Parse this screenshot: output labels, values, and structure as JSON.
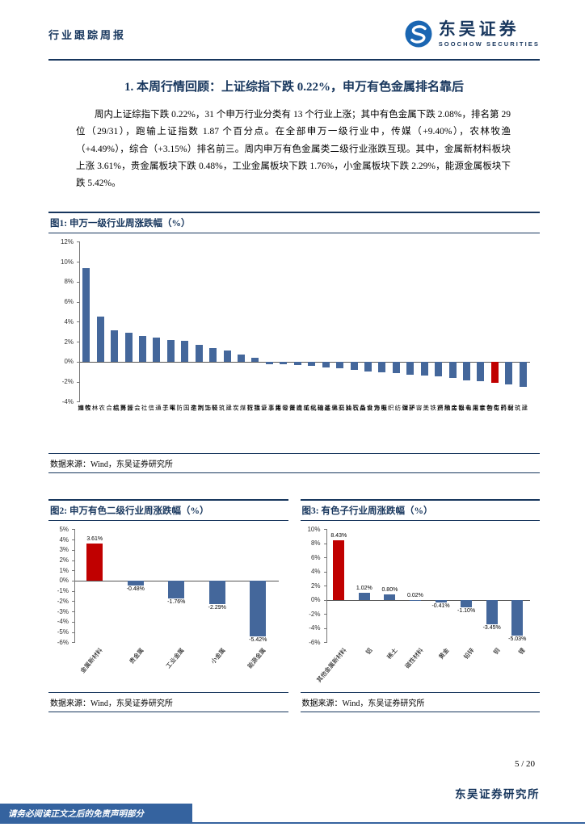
{
  "header": {
    "report_type": "行业跟踪周报",
    "brand_cn": "东吴证券",
    "brand_en": "SOOCHOW SECURITIES"
  },
  "section": {
    "title": "1. 本周行情回顾：上证综指下跌 0.22%，申万有色金属排名靠后",
    "body": "周内上证综指下跌 0.22%，31 个申万行业分类有 13 个行业上涨；其中有色金属下跌 2.08%，排名第 29 位（29/31），跑输上证指数 1.87 个百分点。在全部申万一级行业中，传媒（+9.40%），农林牧渔（+4.49%），综合（+3.15%）排名前三。周内申万有色金属类二级行业涨跌互现。其中，金属新材料板块上涨 3.61%，贵金属板块下跌 0.48%，工业金属板块下跌 1.76%，小金属板块下跌 2.29%，能源金属板块下跌 5.42%。"
  },
  "figures": [
    {
      "title": "图1: 申万一级行业周涨跌幅（%）",
      "source": "数据来源：Wind，东吴证券研究所"
    },
    {
      "title": "图2: 申万有色二级行业周涨跌幅（%）",
      "source": "数据来源：Wind，东吴证券研究所"
    },
    {
      "title": "图3: 有色子行业周涨跌幅（%）",
      "source": "数据来源：Wind，东吴证券研究所"
    }
  ],
  "chart_data": [
    {
      "type": "bar",
      "title": "申万一级行业周涨跌幅（%）",
      "unit": "%",
      "categories": [
        "传媒",
        "农林牧渔",
        "综合",
        "计算机",
        "社会服务",
        "通信",
        "电子",
        "国防军工",
        "汽车",
        "轻工制造",
        "建筑装饰",
        "煤炭",
        "银行",
        "上证指数",
        "公用事业",
        "商贸零售",
        "机械设备",
        "基础化工",
        "交通运输",
        "石油石化",
        "食品饮料",
        "电力设备",
        "纺织服饰",
        "环保",
        "美容护理",
        "钢铁",
        "房地产",
        "非银金融",
        "家用电器",
        "有色金属",
        "医药生物",
        "建筑材料"
      ],
      "values": [
        9.4,
        4.49,
        3.15,
        2.9,
        2.55,
        2.45,
        2.2,
        2.05,
        1.65,
        1.4,
        1.15,
        0.75,
        0.35,
        -0.22,
        -0.25,
        -0.35,
        -0.45,
        -0.55,
        -0.65,
        -0.85,
        -0.95,
        -1.05,
        -1.15,
        -1.3,
        -1.4,
        -1.5,
        -1.65,
        -1.85,
        -1.95,
        -2.08,
        -2.3,
        -2.55
      ],
      "highlight_category": "有色金属",
      "bar_color": "#44679B",
      "highlight_color": "#C00000",
      "ylim": [
        -4,
        12
      ],
      "yticks": [
        12,
        10,
        8,
        6,
        4,
        2,
        0,
        -2,
        -4
      ],
      "grid": false,
      "legend": "none",
      "value_labels": false,
      "label_style": "vertical"
    },
    {
      "type": "bar",
      "title": "申万有色二级行业周涨跌幅（%）",
      "unit": "%",
      "categories": [
        "金属新材料",
        "贵金属",
        "工业金属",
        "小金属",
        "能源金属"
      ],
      "values": [
        3.61,
        -0.48,
        -1.76,
        -2.29,
        -5.42
      ],
      "highlight_category": "金属新材料",
      "bar_color": "#44679B",
      "highlight_color": "#C00000",
      "ylim": [
        -6,
        5
      ],
      "yticks": [
        5,
        4,
        3,
        2,
        1,
        0,
        -1,
        -2,
        -3,
        -4,
        -5,
        -6
      ],
      "grid": false,
      "legend": "none",
      "value_labels": true,
      "label_style": "slanted"
    },
    {
      "type": "bar",
      "title": "有色子行业周涨跌幅（%）",
      "unit": "%",
      "categories": [
        "其他金属新材料",
        "铝",
        "稀土",
        "磁性材料",
        "黄金",
        "铅锌",
        "铜",
        "锂"
      ],
      "values": [
        8.43,
        1.02,
        0.8,
        0.02,
        -0.41,
        -1.1,
        -3.45,
        -5.03
      ],
      "highlight_category": "其他金属新材料",
      "bar_color": "#44679B",
      "highlight_color": "#C00000",
      "ylim": [
        -6,
        10
      ],
      "yticks": [
        10,
        8,
        6,
        4,
        2,
        0,
        -2,
        -4,
        -6
      ],
      "grid": false,
      "legend": "none",
      "value_labels": true,
      "label_style": "slanted"
    }
  ],
  "footer": {
    "page_number": "5 / 20",
    "institute": "东吴证券研究所",
    "disclaimer": "请务必阅读正文之后的免责声明部分"
  },
  "colors": {
    "navy": "#17365D",
    "bar_blue": "#44679B",
    "bar_red": "#C00000",
    "footer_blue": "#35639F",
    "logo_blue": "#1A66B2"
  }
}
